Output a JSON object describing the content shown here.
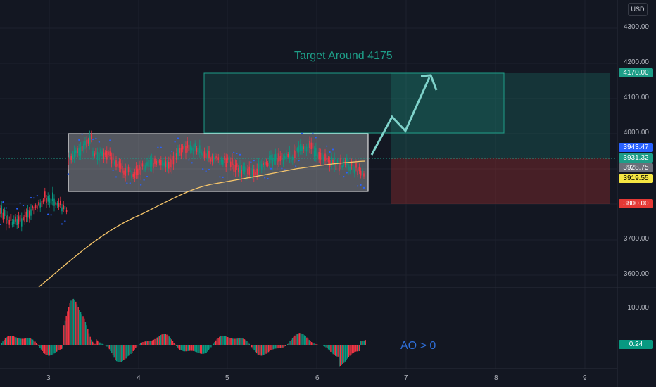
{
  "currency": "USD",
  "price_axis": {
    "labels": [
      "4300.00",
      "4200.00",
      "4100.00",
      "4000.00",
      "3700.00",
      "3600.00"
    ]
  },
  "price_tags": [
    {
      "value": "4170.00",
      "color": "#1e9e88"
    },
    {
      "value": "3943.47",
      "color": "#2962ff"
    },
    {
      "value": "3931.32",
      "color": "#1e9e88"
    },
    {
      "value": "3928.75",
      "color": "#6b6f79"
    },
    {
      "value": "3919.55",
      "color": "#f5e642",
      "text_color": "#000000"
    },
    {
      "value": "3800.00",
      "color": "#e53935"
    }
  ],
  "oscillator": {
    "axis_label": "100.00",
    "value_tag": "0.24",
    "value_color": "#089981"
  },
  "date_axis": [
    "3",
    "4",
    "5",
    "6",
    "7",
    "8",
    "9"
  ],
  "annotations": {
    "target": "Target Around 4175",
    "ao_note": "AO > 0"
  },
  "colors": {
    "up": "#089981",
    "down": "#f23645",
    "sar": "#2962ff",
    "ma": "#f7c66a",
    "zone_profit": "#1e9e88",
    "zone_loss": "#e53935",
    "arrow": "#7fd3cb"
  },
  "chart_data": {
    "type": "candlestick",
    "title": "",
    "ylim": [
      3550,
      4350
    ],
    "yticks": [
      4300,
      4200,
      4100,
      4000,
      3700,
      3600
    ],
    "target_price": 4175,
    "take_profit": 4170,
    "stop_loss": 3800,
    "last_prices": [
      3943.47,
      3931.32,
      3928.75,
      3919.55
    ],
    "x_ticks": [
      "3",
      "4",
      "5",
      "6",
      "7",
      "8",
      "9"
    ],
    "indicators": [
      "Parabolic SAR",
      "Moving Average",
      "Awesome Oscillator"
    ]
  }
}
